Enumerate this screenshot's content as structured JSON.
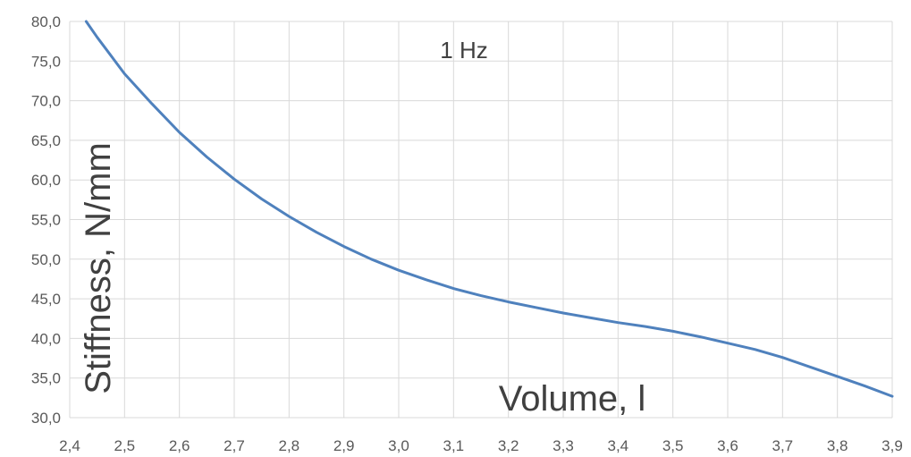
{
  "chart_data": {
    "type": "line",
    "title": "",
    "annotation": "1 Hz",
    "xlabel": "Volume, l",
    "ylabel": "Stiffness, N/mm",
    "xlim": [
      2.4,
      3.9
    ],
    "ylim": [
      30.0,
      80.0
    ],
    "x_ticks": [
      "2,4",
      "2,5",
      "2,6",
      "2,7",
      "2,8",
      "2,9",
      "3,0",
      "3,1",
      "3,2",
      "3,3",
      "3,4",
      "3,5",
      "3,6",
      "3,7",
      "3,8",
      "3,9"
    ],
    "y_ticks": [
      "30,0",
      "35,0",
      "40,0",
      "45,0",
      "50,0",
      "55,0",
      "60,0",
      "65,0",
      "70,0",
      "75,0",
      "80,0"
    ],
    "grid": true,
    "legend": "none",
    "series": [
      {
        "color": "#4f81bd",
        "x": [
          2.43,
          2.45,
          2.5,
          2.55,
          2.6,
          2.65,
          2.7,
          2.75,
          2.8,
          2.85,
          2.9,
          2.95,
          3.0,
          3.05,
          3.1,
          3.15,
          3.2,
          3.25,
          3.3,
          3.35,
          3.4,
          3.45,
          3.5,
          3.55,
          3.6,
          3.65,
          3.7,
          3.75,
          3.8,
          3.85,
          3.9
        ],
        "y": [
          80.0,
          78.0,
          73.4,
          69.6,
          66.0,
          62.9,
          60.1,
          57.6,
          55.4,
          53.4,
          51.6,
          50.0,
          48.6,
          47.4,
          46.3,
          45.4,
          44.6,
          43.9,
          43.2,
          42.6,
          42.0,
          41.5,
          40.9,
          40.2,
          39.4,
          38.6,
          37.6,
          36.4,
          35.2,
          34.0,
          32.7
        ]
      }
    ]
  }
}
